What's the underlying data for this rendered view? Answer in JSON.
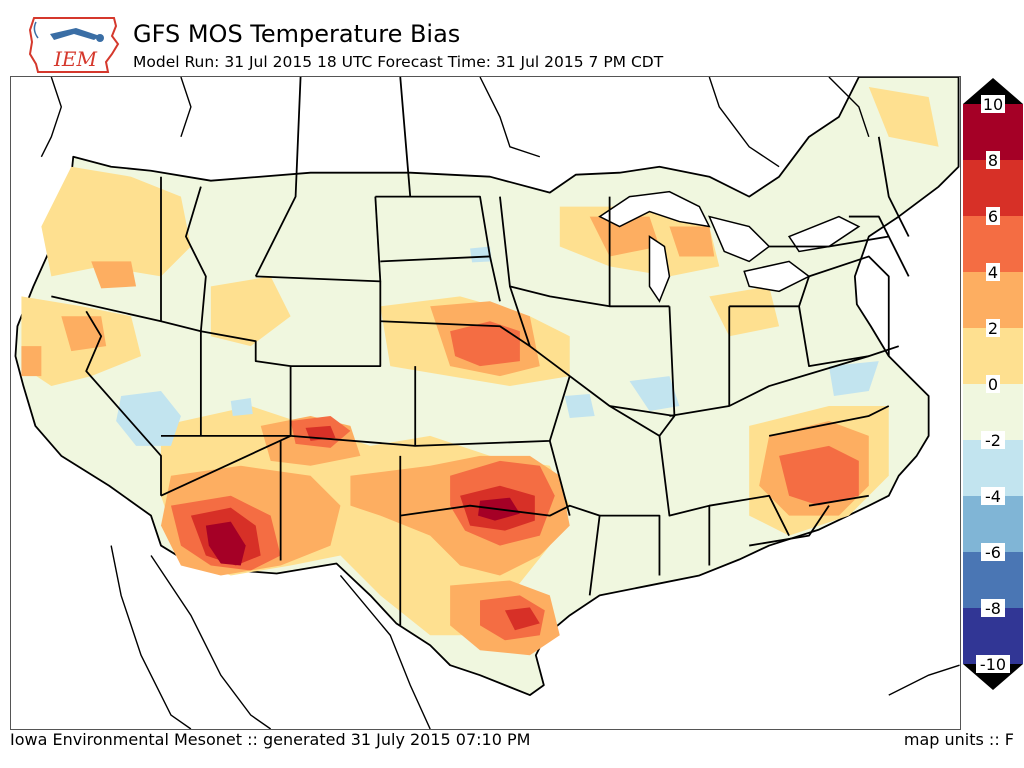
{
  "header": {
    "logo_text": "IEM",
    "title": "GFS MOS Temperature Bias",
    "subtitle": "Model Run: 31 Jul 2015 18 UTC Forecast Time: 31 Jul 2015 7 PM CDT"
  },
  "footer": {
    "credit": "Iowa Environmental Mesonet :: generated 31 July 2015 07:10 PM",
    "units": "map units :: F"
  },
  "colorbar": {
    "levels": [
      {
        "value": 10,
        "label": "10"
      },
      {
        "value": 8,
        "label": "8"
      },
      {
        "value": 6,
        "label": "6"
      },
      {
        "value": 4,
        "label": "4"
      },
      {
        "value": 2,
        "label": "2"
      },
      {
        "value": 0,
        "label": "0"
      },
      {
        "value": -2,
        "label": "-2"
      },
      {
        "value": -4,
        "label": "-4"
      },
      {
        "value": -6,
        "label": "-6"
      },
      {
        "value": -8,
        "label": "-8"
      },
      {
        "value": -10,
        "label": "-10"
      }
    ],
    "bins": [
      {
        "from": 8,
        "to": 10,
        "color": "#a50026"
      },
      {
        "from": 6,
        "to": 8,
        "color": "#d73027"
      },
      {
        "from": 4,
        "to": 6,
        "color": "#f46d43"
      },
      {
        "from": 2,
        "to": 4,
        "color": "#fdae61"
      },
      {
        "from": 0,
        "to": 2,
        "color": "#fee090"
      },
      {
        "from": -2,
        "to": 0,
        "color": "#f0f7df"
      },
      {
        "from": -4,
        "to": -2,
        "color": "#c2e4ef"
      },
      {
        "from": -6,
        "to": -4,
        "color": "#80b5d6"
      },
      {
        "from": -8,
        "to": -6,
        "color": "#4a76b4"
      },
      {
        "from": -10,
        "to": -8,
        "color": "#313695"
      }
    ],
    "over_color": "#000000",
    "under_color": "#000000"
  },
  "map": {
    "land_color": "#f0f7df",
    "outside_color": "#ffffff",
    "water_color": "#ffffff"
  }
}
